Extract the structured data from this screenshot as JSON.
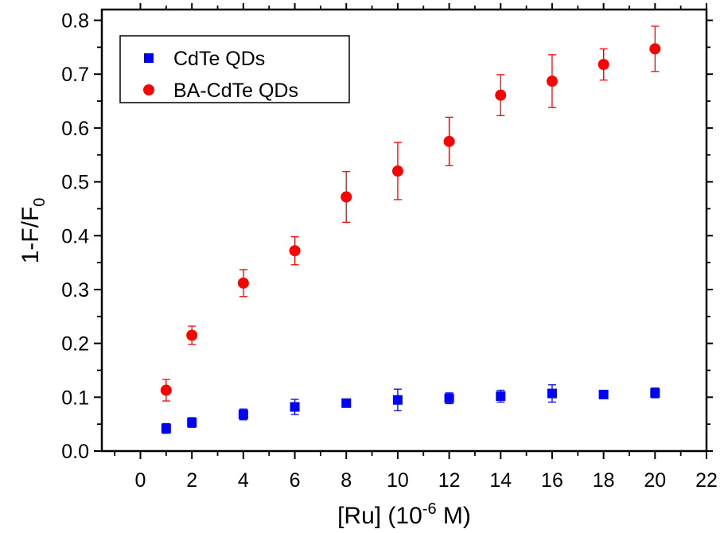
{
  "chart_data": {
    "type": "scatter",
    "xlabel": {
      "main": "[Ru] (10",
      "sup": "-6",
      "tail": " M)"
    },
    "ylabel": {
      "main": "1-F/F",
      "sub": "0"
    },
    "xlim": [
      -1.5,
      22
    ],
    "ylim": [
      0,
      0.82
    ],
    "x_ticks": [
      0,
      2,
      4,
      6,
      8,
      10,
      12,
      14,
      16,
      18,
      20,
      22
    ],
    "x_tick_labels": [
      "0",
      "2",
      "4",
      "6",
      "8",
      "10",
      "12",
      "14",
      "16",
      "18",
      "20",
      "22"
    ],
    "y_ticks": [
      0.0,
      0.1,
      0.2,
      0.3,
      0.4,
      0.5,
      0.6,
      0.7,
      0.8
    ],
    "y_tick_labels": [
      "0.0",
      "0.1",
      "0.2",
      "0.3",
      "0.4",
      "0.5",
      "0.6",
      "0.7",
      "0.8"
    ],
    "grid": false,
    "legend_position": "top-left",
    "series": [
      {
        "name": "CdTe QDs",
        "marker": "square",
        "color": "#0000ff",
        "x": [
          1,
          2,
          4,
          6,
          8,
          10,
          12,
          14,
          16,
          18,
          20
        ],
        "y": [
          0.042,
          0.053,
          0.068,
          0.082,
          0.089,
          0.095,
          0.098,
          0.102,
          0.107,
          0.105,
          0.108
        ],
        "err": [
          0.009,
          0.009,
          0.01,
          0.014,
          0.007,
          0.02,
          0.01,
          0.011,
          0.016,
          0.005,
          0.009
        ]
      },
      {
        "name": "BA-CdTe QDs",
        "marker": "circle",
        "color": "#ff0000",
        "x": [
          1,
          2,
          4,
          6,
          8,
          10,
          12,
          14,
          16,
          18,
          20
        ],
        "y": [
          0.113,
          0.215,
          0.312,
          0.372,
          0.472,
          0.52,
          0.575,
          0.661,
          0.687,
          0.718,
          0.747
        ],
        "err": [
          0.02,
          0.017,
          0.025,
          0.026,
          0.047,
          0.053,
          0.045,
          0.038,
          0.049,
          0.029,
          0.042
        ]
      }
    ]
  }
}
